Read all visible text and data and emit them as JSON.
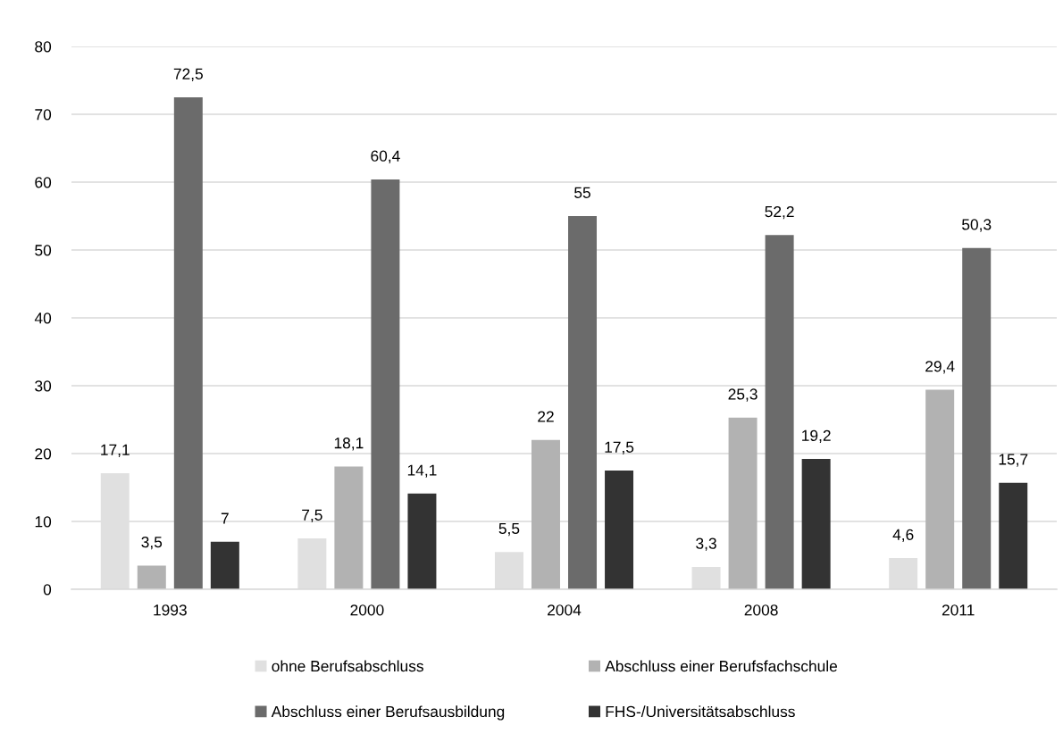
{
  "chart_data": {
    "type": "bar",
    "categories": [
      "1993",
      "2000",
      "2004",
      "2008",
      "2011"
    ],
    "series": [
      {
        "name": "ohne Berufsabschluss",
        "color": "#e0e0e0",
        "values": [
          17.1,
          7.5,
          5.5,
          3.3,
          4.6
        ],
        "value_labels": [
          "17,1",
          "7,5",
          "5,5",
          "3,3",
          "4,6"
        ]
      },
      {
        "name": "Abschluss einer Berufsfachschule",
        "color": "#b2b2b2",
        "values": [
          3.5,
          18.1,
          22,
          25.3,
          29.4
        ],
        "value_labels": [
          "3,5",
          "18,1",
          "22",
          "25,3",
          "29,4"
        ]
      },
      {
        "name": "Abschluss einer Berufsausbildung",
        "color": "#6b6b6b",
        "values": [
          72.5,
          60.4,
          55,
          52.2,
          50.3
        ],
        "value_labels": [
          "72,5",
          "60,4",
          "55",
          "52,2",
          "50,3"
        ]
      },
      {
        "name": "FHS-/Universitätsabschluss",
        "color": "#333333",
        "values": [
          7,
          14.1,
          17.5,
          19.2,
          15.7
        ],
        "value_labels": [
          "7",
          "14,1",
          "17,5",
          "19,2",
          "15,7"
        ]
      }
    ],
    "ylim": [
      0,
      80
    ],
    "yticks": [
      0,
      10,
      20,
      30,
      40,
      50,
      60,
      70,
      80
    ],
    "grid": "y",
    "legend": "bottom"
  }
}
